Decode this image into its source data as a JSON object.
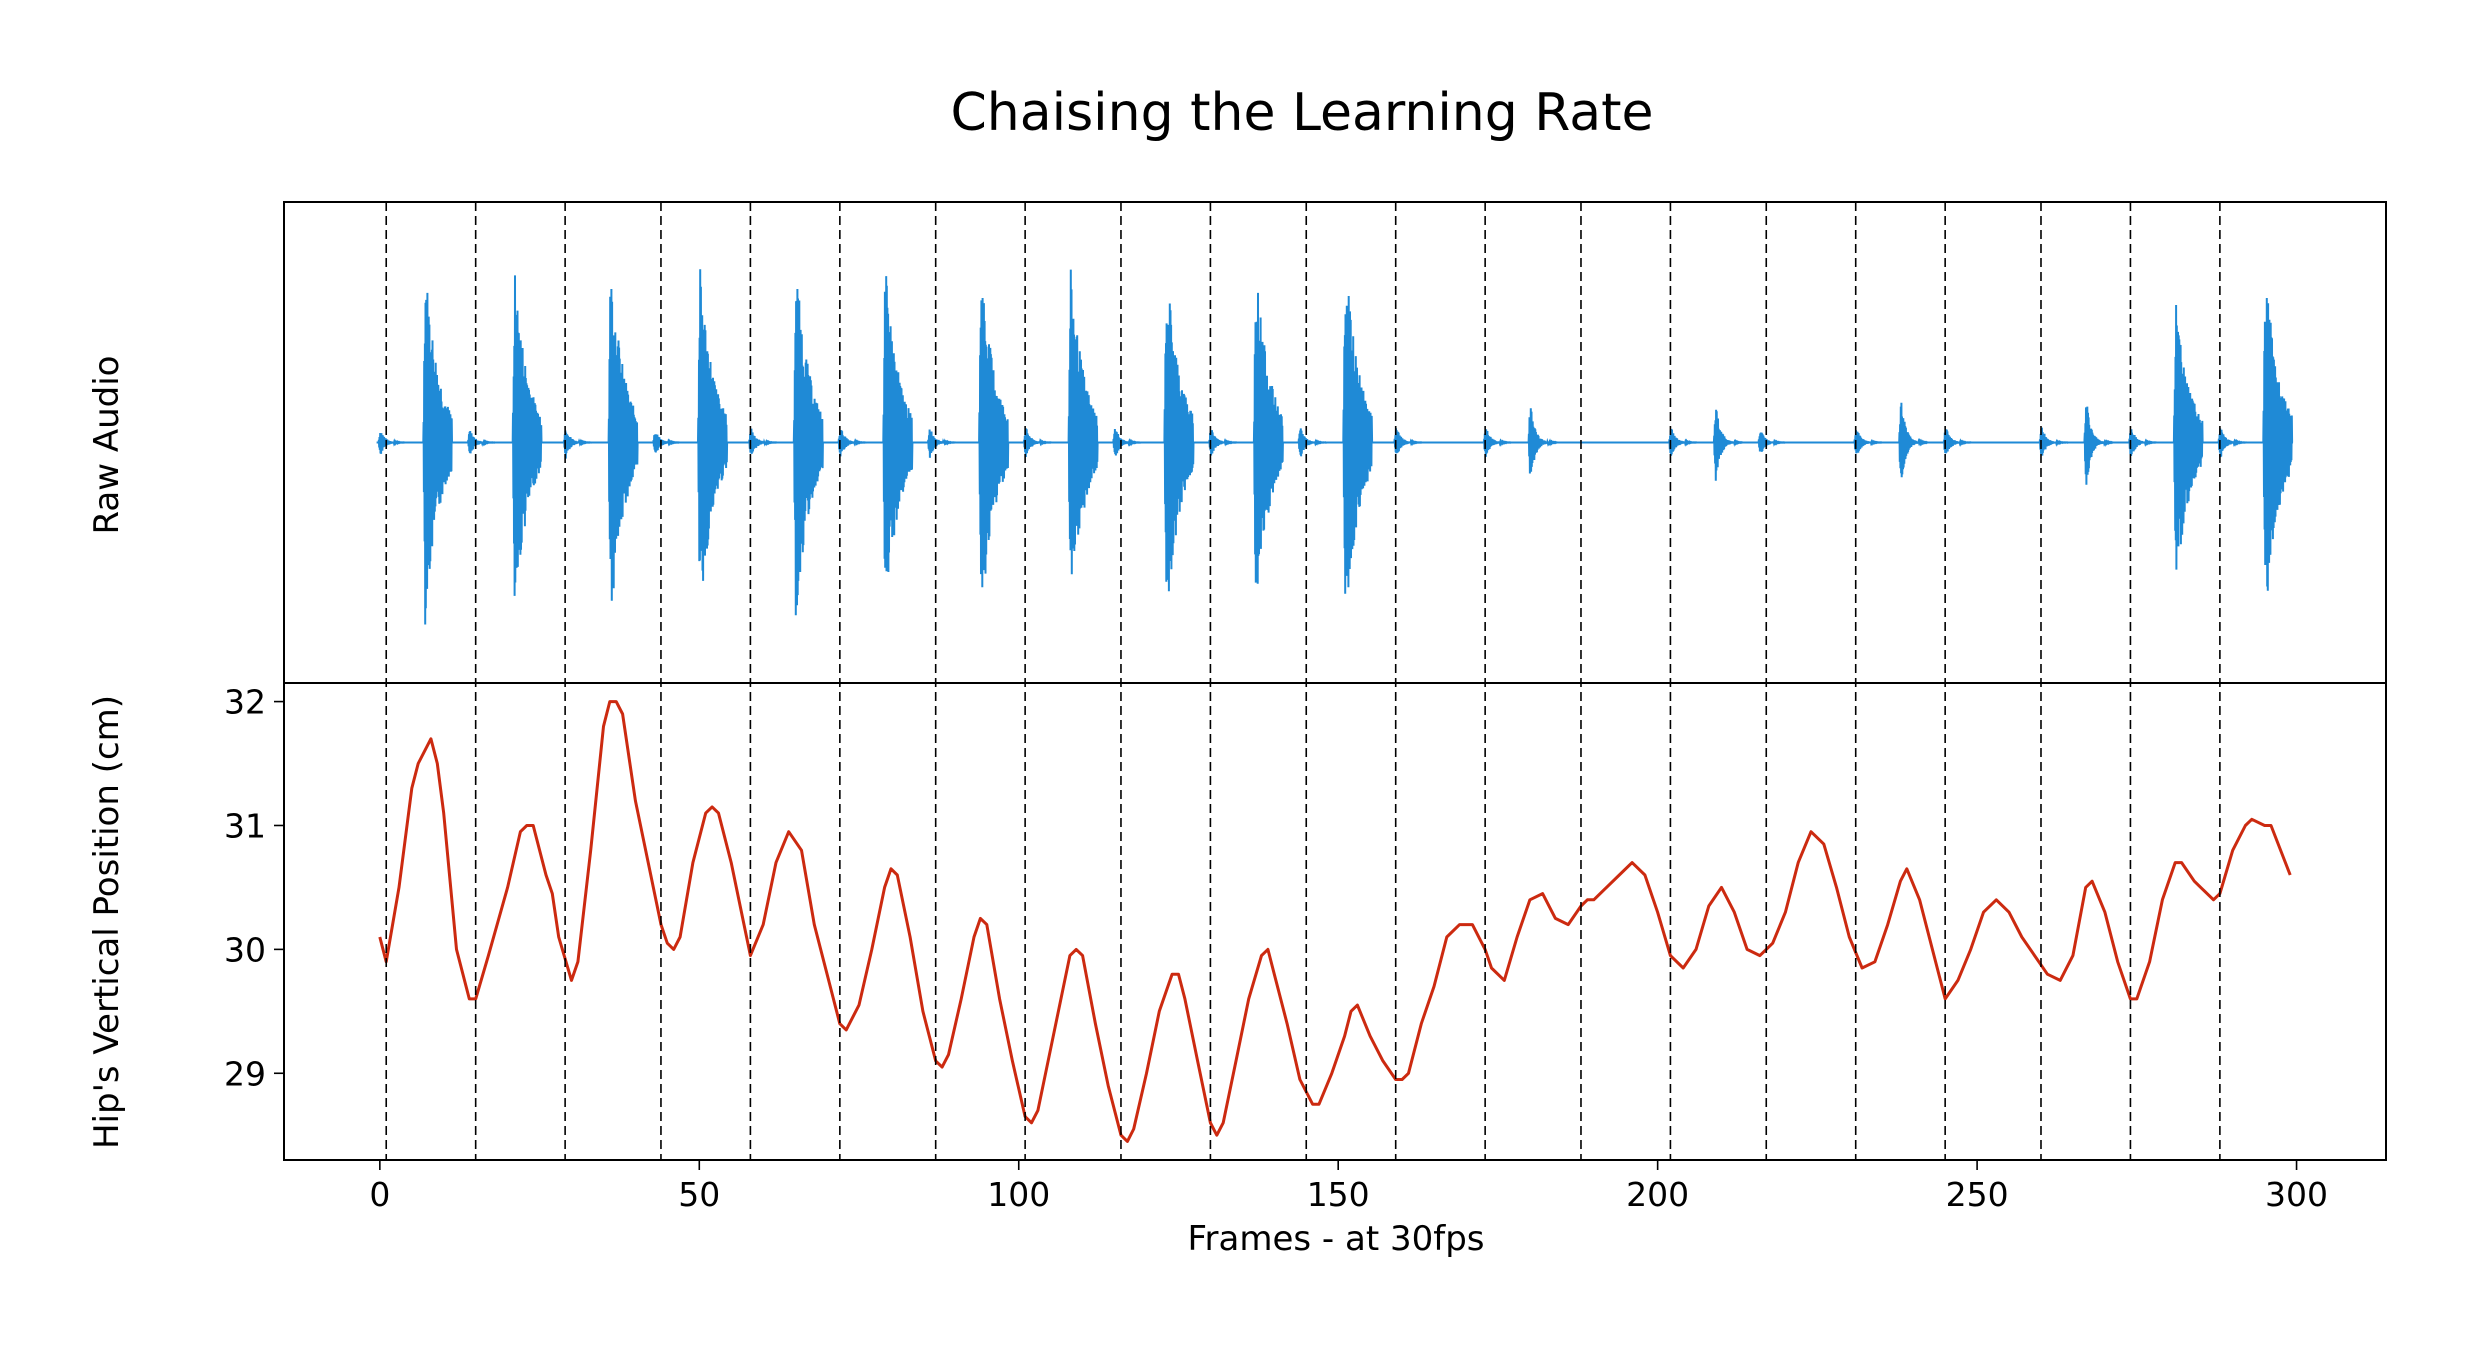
{
  "chart_data": [
    {
      "type": "line",
      "title": "Chaising the Learning Rate",
      "ylabel": "Raw Audio",
      "xlabel": "",
      "xlim": [
        -15,
        314
      ],
      "ylim": [
        -1.15,
        1.15
      ],
      "series_color": "#1f8ad6",
      "note": "waveform bursts: frame and relative amplitude",
      "bursts": [
        {
          "frame": 1,
          "amp": 0.1
        },
        {
          "frame": 8,
          "amp": 1.0
        },
        {
          "frame": 15,
          "amp": 0.1
        },
        {
          "frame": 22,
          "amp": 0.95
        },
        {
          "frame": 30,
          "amp": 0.12
        },
        {
          "frame": 37,
          "amp": 1.0
        },
        {
          "frame": 44,
          "amp": 0.1
        },
        {
          "frame": 51,
          "amp": 0.98
        },
        {
          "frame": 59,
          "amp": 0.12
        },
        {
          "frame": 66,
          "amp": 1.0
        },
        {
          "frame": 73,
          "amp": 0.12
        },
        {
          "frame": 80,
          "amp": 0.98
        },
        {
          "frame": 87,
          "amp": 0.12
        },
        {
          "frame": 95,
          "amp": 1.0
        },
        {
          "frame": 102,
          "amp": 0.12
        },
        {
          "frame": 109,
          "amp": 0.97
        },
        {
          "frame": 116,
          "amp": 0.12
        },
        {
          "frame": 124,
          "amp": 1.0
        },
        {
          "frame": 131,
          "amp": 0.12
        },
        {
          "frame": 138,
          "amp": 0.98
        },
        {
          "frame": 145,
          "amp": 0.12
        },
        {
          "frame": 152,
          "amp": 1.03
        },
        {
          "frame": 160,
          "amp": 0.12
        },
        {
          "frame": 174,
          "amp": 0.12
        },
        {
          "frame": 181,
          "amp": 0.3
        },
        {
          "frame": 203,
          "amp": 0.12
        },
        {
          "frame": 210,
          "amp": 0.3
        },
        {
          "frame": 217,
          "amp": 0.1
        },
        {
          "frame": 232,
          "amp": 0.12
        },
        {
          "frame": 239,
          "amp": 0.33
        },
        {
          "frame": 246,
          "amp": 0.12
        },
        {
          "frame": 261,
          "amp": 0.12
        },
        {
          "frame": 268,
          "amp": 0.33
        },
        {
          "frame": 275,
          "amp": 0.12
        },
        {
          "frame": 282,
          "amp": 0.8
        },
        {
          "frame": 289,
          "amp": 0.12
        },
        {
          "frame": 296,
          "amp": 1.0
        }
      ]
    },
    {
      "type": "line",
      "title": "",
      "xlabel": "Frames - at 30fps",
      "ylabel": "Hip's Vertical Position (cm)",
      "xlim": [
        -15,
        314
      ],
      "ylim": [
        28.3,
        32.15
      ],
      "xticks": [
        0,
        50,
        100,
        150,
        200,
        250,
        300
      ],
      "yticks": [
        29,
        30,
        31,
        32
      ],
      "series_color": "#cc2a10",
      "x": [
        0,
        1,
        3,
        5,
        6,
        8,
        9,
        10,
        12,
        14,
        15,
        17,
        20,
        22,
        23,
        24,
        26,
        27,
        28,
        30,
        31,
        33,
        35,
        36,
        37,
        38,
        40,
        42,
        44,
        45,
        46,
        47,
        49,
        51,
        52,
        53,
        55,
        57,
        58,
        60,
        62,
        64,
        66,
        68,
        70,
        72,
        73,
        75,
        77,
        79,
        80,
        81,
        83,
        85,
        87,
        88,
        89,
        91,
        93,
        94,
        95,
        97,
        99,
        101,
        102,
        103,
        105,
        107,
        108,
        109,
        110,
        112,
        114,
        116,
        117,
        118,
        120,
        122,
        124,
        125,
        126,
        128,
        130,
        131,
        132,
        134,
        136,
        138,
        139,
        140,
        142,
        144,
        146,
        147,
        149,
        151,
        152,
        153,
        155,
        157,
        159,
        160,
        161,
        163,
        165,
        167,
        169,
        171,
        173,
        174,
        176,
        178,
        180,
        182,
        184,
        186,
        188,
        189,
        190,
        192,
        194,
        196,
        198,
        200,
        202,
        204,
        206,
        208,
        210,
        212,
        214,
        216,
        218,
        220,
        222,
        224,
        226,
        228,
        230,
        232,
        234,
        236,
        238,
        239,
        241,
        243,
        245,
        247,
        249,
        251,
        253,
        255,
        257,
        259,
        261,
        263,
        265,
        267,
        268,
        270,
        272,
        274,
        275,
        277,
        279,
        281,
        282,
        284,
        285,
        287,
        288,
        290,
        292,
        293,
        295,
        296,
        299
      ],
      "y": [
        30.1,
        29.9,
        30.5,
        31.3,
        31.5,
        31.7,
        31.5,
        31.1,
        30.0,
        29.6,
        29.6,
        29.95,
        30.5,
        30.95,
        31.0,
        31.0,
        30.6,
        30.45,
        30.1,
        29.75,
        29.9,
        30.8,
        31.8,
        32.0,
        32.0,
        31.9,
        31.2,
        30.7,
        30.2,
        30.05,
        30.0,
        30.1,
        30.7,
        31.1,
        31.15,
        31.1,
        30.7,
        30.2,
        29.95,
        30.2,
        30.7,
        30.95,
        30.8,
        30.2,
        29.8,
        29.4,
        29.35,
        29.55,
        30.0,
        30.5,
        30.65,
        30.6,
        30.1,
        29.5,
        29.1,
        29.05,
        29.15,
        29.6,
        30.1,
        30.25,
        30.2,
        29.6,
        29.1,
        28.65,
        28.6,
        28.7,
        29.2,
        29.7,
        29.95,
        30.0,
        29.95,
        29.4,
        28.9,
        28.5,
        28.45,
        28.55,
        29.0,
        29.5,
        29.8,
        29.8,
        29.6,
        29.1,
        28.6,
        28.5,
        28.6,
        29.1,
        29.6,
        29.95,
        30.0,
        29.8,
        29.4,
        28.95,
        28.75,
        28.75,
        29.0,
        29.3,
        29.5,
        29.55,
        29.3,
        29.1,
        28.95,
        28.95,
        29.0,
        29.4,
        29.7,
        30.1,
        30.2,
        30.2,
        30.0,
        29.85,
        29.75,
        30.1,
        30.4,
        30.45,
        30.25,
        30.2,
        30.35,
        30.4,
        30.4,
        30.5,
        30.6,
        30.7,
        30.6,
        30.3,
        29.95,
        29.85,
        30.0,
        30.35,
        30.5,
        30.3,
        30.0,
        29.95,
        30.05,
        30.3,
        30.7,
        30.95,
        30.85,
        30.5,
        30.1,
        29.85,
        29.9,
        30.2,
        30.55,
        30.65,
        30.4,
        30.0,
        29.6,
        29.75,
        30.0,
        30.3,
        30.4,
        30.3,
        30.1,
        29.95,
        29.8,
        29.75,
        29.95,
        30.5,
        30.55,
        30.3,
        29.9,
        29.6,
        29.6,
        29.9,
        30.4,
        30.7,
        30.7,
        30.55,
        30.5,
        30.4,
        30.45,
        30.8,
        31.0,
        31.05,
        31.0,
        31.0,
        30.6
      ]
    }
  ],
  "beat_lines": [
    1,
    15,
    29,
    44,
    58,
    72,
    87,
    101,
    116,
    130,
    145,
    159,
    173,
    188,
    202,
    217,
    231,
    245,
    260,
    274,
    288
  ]
}
